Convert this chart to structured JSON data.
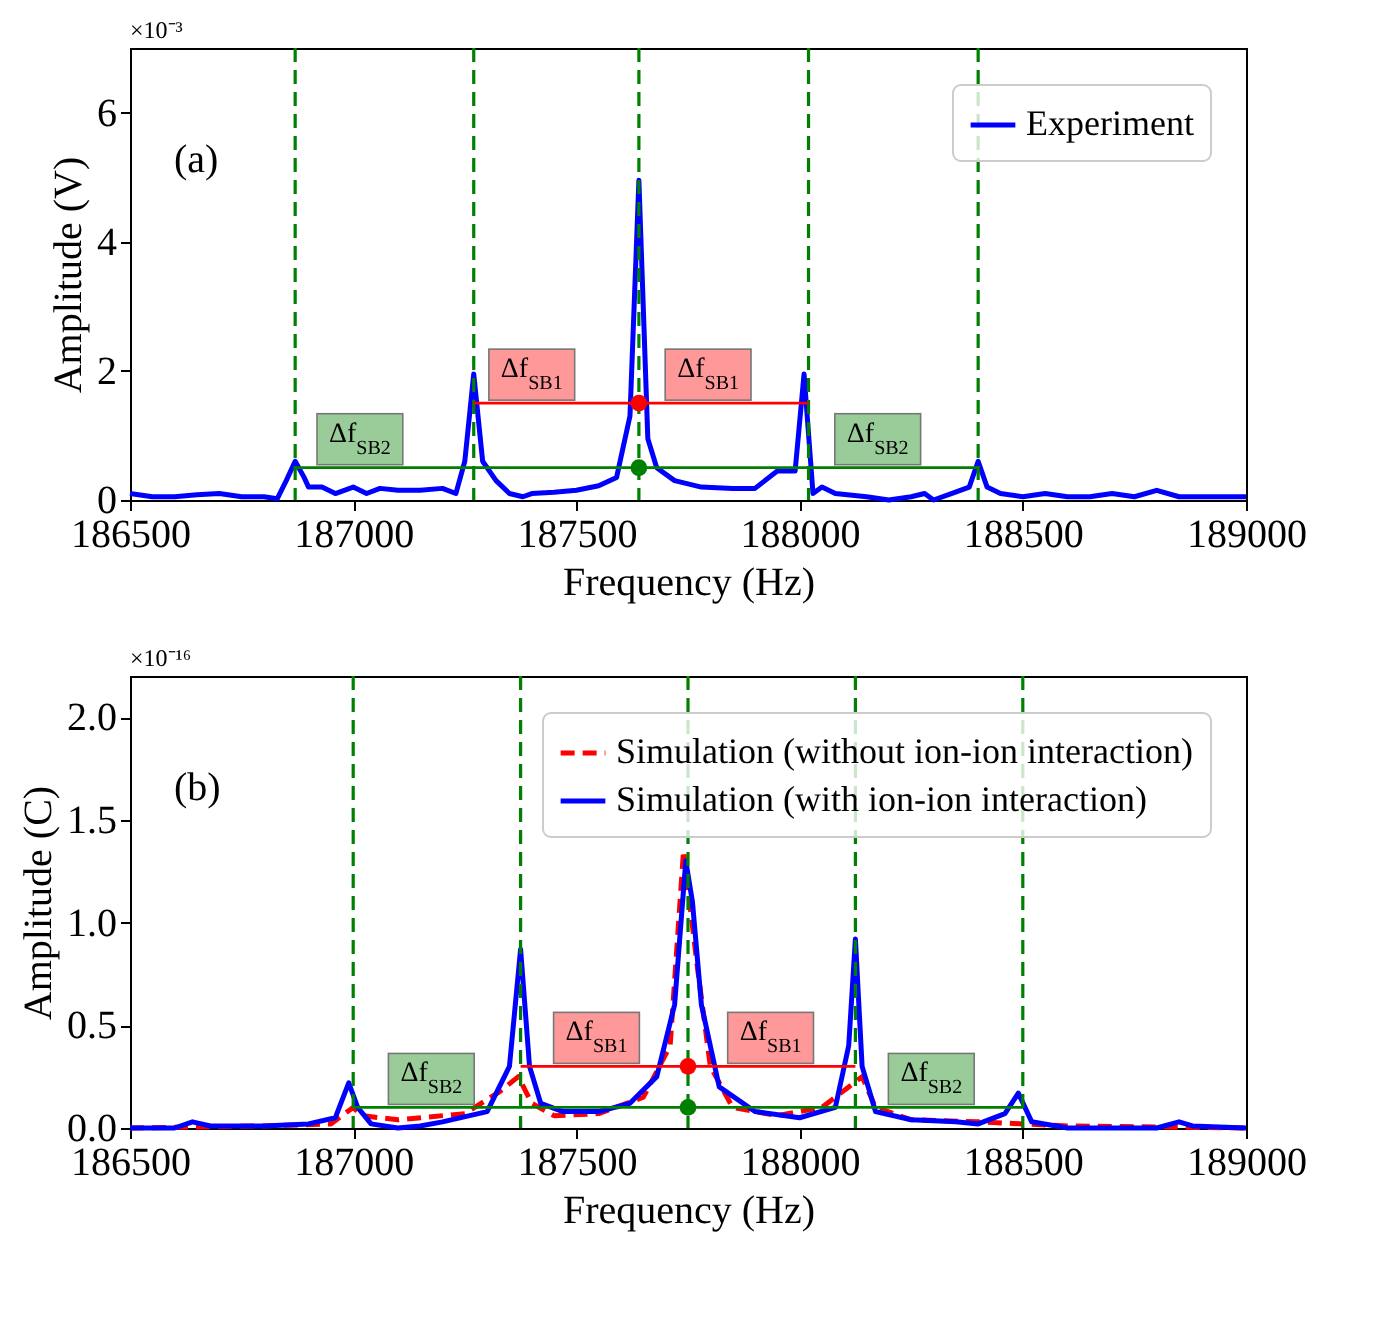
{
  "chart_data": [
    {
      "type": "line",
      "xlabel": "Frequency (Hz)",
      "ylabel": "Amplitude (V)",
      "xlim": [
        186500,
        189000
      ],
      "xticks": [
        186500,
        187000,
        187500,
        188000,
        188500,
        189000
      ],
      "ylim": [
        0,
        7
      ],
      "yticks": [
        0,
        2,
        4,
        6
      ],
      "grid": false,
      "legend": "top right",
      "marker": "none",
      "series": [
        {
          "name": "Experiment",
          "color": "#0000ff",
          "line_style": "solid",
          "x": [
            186500,
            186550,
            186600,
            186650,
            186700,
            186750,
            186800,
            186830,
            186850,
            186870,
            186890,
            186900,
            186930,
            186960,
            187000,
            187030,
            187060,
            187100,
            187150,
            187200,
            187230,
            187250,
            187270,
            187290,
            187320,
            187350,
            187380,
            187400,
            187450,
            187500,
            187550,
            187590,
            187620,
            187640,
            187660,
            187680,
            187720,
            187780,
            187850,
            187900,
            187950,
            187990,
            188010,
            188030,
            188050,
            188080,
            188150,
            188200,
            188250,
            188280,
            188300,
            188340,
            188380,
            188400,
            188420,
            188450,
            188500,
            188550,
            188600,
            188650,
            188700,
            188750,
            188800,
            188850,
            188900,
            189000
          ],
          "values": [
            0.1,
            0.05,
            0.05,
            0.08,
            0.1,
            0.05,
            0.05,
            0.02,
            0.3,
            0.6,
            0.35,
            0.2,
            0.2,
            0.1,
            0.2,
            0.1,
            0.18,
            0.15,
            0.15,
            0.18,
            0.1,
            0.6,
            1.95,
            0.6,
            0.3,
            0.1,
            0.05,
            0.1,
            0.12,
            0.15,
            0.22,
            0.35,
            1.3,
            4.95,
            0.95,
            0.5,
            0.3,
            0.2,
            0.18,
            0.18,
            0.45,
            0.45,
            1.95,
            0.1,
            0.2,
            0.1,
            0.05,
            0.0,
            0.05,
            0.1,
            0.0,
            0.1,
            0.2,
            0.6,
            0.2,
            0.1,
            0.05,
            0.1,
            0.05,
            0.05,
            0.1,
            0.05,
            0.15,
            0.05,
            0.05,
            0.05
          ]
        },
        {
          "color": "#ff0000",
          "line_style": "solid",
          "x": [
            187270,
            188020
          ],
          "values": [
            1.5,
            1.5
          ]
        },
        {
          "color": "#008000",
          "line_style": "solid",
          "x": [
            186870,
            188400
          ],
          "values": [
            0.5,
            0.5
          ]
        },
        {
          "type": "scatter",
          "marker": "circle",
          "color": "#ff0000",
          "x": [
            187640
          ],
          "values": [
            1.5
          ]
        },
        {
          "type": "scatter",
          "marker": "circle",
          "color": "#008000",
          "x": [
            187640
          ],
          "values": [
            0.5
          ]
        }
      ],
      "ref_lines": [
        {
          "axis": "x",
          "value": 186870,
          "color": "#008000",
          "line_style": "dashed"
        },
        {
          "axis": "x",
          "value": 187270,
          "color": "#008000",
          "line_style": "dashed"
        },
        {
          "axis": "x",
          "value": 187640,
          "color": "#008000",
          "line_style": "dashed"
        },
        {
          "axis": "x",
          "value": 188020,
          "color": "#008000",
          "line_style": "dashed"
        },
        {
          "axis": "x",
          "value": 188400,
          "color": "#008000",
          "line_style": "dashed"
        }
      ],
      "annotations": [
        "×10⁻³",
        "(a)",
        {
          "text": "Δf$_{SB1}$",
          "x": 187400,
          "y": 1.5
        },
        {
          "text": "Δf$_{SB1}$",
          "x": 187795,
          "y": 1.5
        },
        {
          "text": "Δf$_{SB2}$",
          "x": 187015,
          "y": 0.5
        },
        {
          "text": "Δf$_{SB2}$",
          "x": 188175,
          "y": 0.5
        }
      ]
    },
    {
      "type": "line",
      "xlabel": "Frequency (Hz)",
      "ylabel": "Amplitude (C)",
      "xlim": [
        186500,
        189000
      ],
      "xticks": [
        186500,
        187000,
        187500,
        188000,
        188500,
        189000
      ],
      "ylim": [
        0,
        2.2
      ],
      "yticks": [
        {
          "value": 0,
          "label": "0.0"
        },
        {
          "value": 0.5,
          "label": "0.5"
        },
        {
          "value": 1,
          "label": "1.0"
        },
        {
          "value": 1.5,
          "label": "1.5"
        },
        {
          "value": 2,
          "label": "2.0"
        }
      ],
      "grid": false,
      "legend": "top right",
      "marker": "none",
      "series": [
        {
          "name": "Simulation (without ion-ion interaction)",
          "color": "#ff0000",
          "line_style": "dashed",
          "x": [
            186500,
            186800,
            186950,
            187000,
            187020,
            187100,
            187250,
            187330,
            187370,
            187400,
            187450,
            187550,
            187650,
            187710,
            187740,
            187770,
            187800,
            187850,
            187950,
            188050,
            188110,
            188140,
            188170,
            188250,
            188400,
            188500,
            188600,
            189000
          ],
          "values": [
            0.0,
            0.01,
            0.02,
            0.1,
            0.06,
            0.04,
            0.07,
            0.18,
            0.25,
            0.12,
            0.06,
            0.07,
            0.15,
            0.4,
            1.35,
            0.8,
            0.3,
            0.1,
            0.06,
            0.1,
            0.2,
            0.25,
            0.1,
            0.04,
            0.03,
            0.02,
            0.01,
            0.0
          ]
        },
        {
          "name": "Simulation (with ion-ion interaction)",
          "color": "#0000ff",
          "line_style": "solid",
          "x": [
            186500,
            186600,
            186640,
            186680,
            186800,
            186900,
            186960,
            186990,
            187010,
            187040,
            187100,
            187150,
            187200,
            187300,
            187350,
            187375,
            187395,
            187420,
            187470,
            187550,
            187620,
            187680,
            187720,
            187745,
            187760,
            187780,
            187820,
            187900,
            188000,
            188080,
            188110,
            188125,
            188140,
            188170,
            188250,
            188350,
            188400,
            188460,
            188490,
            188520,
            188600,
            188800,
            188850,
            188880,
            189000
          ],
          "values": [
            0.0,
            0.0,
            0.03,
            0.01,
            0.01,
            0.02,
            0.05,
            0.22,
            0.1,
            0.02,
            0.0,
            0.01,
            0.03,
            0.08,
            0.3,
            0.87,
            0.3,
            0.12,
            0.08,
            0.08,
            0.12,
            0.25,
            0.6,
            1.3,
            1.1,
            0.6,
            0.2,
            0.08,
            0.05,
            0.1,
            0.4,
            0.92,
            0.3,
            0.08,
            0.04,
            0.03,
            0.02,
            0.07,
            0.17,
            0.03,
            0.0,
            0.0,
            0.03,
            0.01,
            0.0
          ]
        },
        {
          "color": "#ff0000",
          "line_style": "solid",
          "x": [
            187375,
            188125
          ],
          "values": [
            0.3,
            0.3
          ]
        },
        {
          "color": "#008000",
          "line_style": "solid",
          "x": [
            187000,
            188500
          ],
          "values": [
            0.1,
            0.1
          ]
        },
        {
          "type": "scatter",
          "marker": "circle",
          "color": "#ff0000",
          "x": [
            187750
          ],
          "values": [
            0.3
          ]
        },
        {
          "type": "scatter",
          "marker": "circle",
          "color": "#008000",
          "x": [
            187750
          ],
          "values": [
            0.1
          ]
        }
      ],
      "ref_lines": [
        {
          "axis": "x",
          "value": 187000,
          "color": "#008000",
          "line_style": "dashed"
        },
        {
          "axis": "x",
          "value": 187375,
          "color": "#008000",
          "line_style": "dashed"
        },
        {
          "axis": "x",
          "value": 187750,
          "color": "#008000",
          "line_style": "dashed"
        },
        {
          "axis": "x",
          "value": 188125,
          "color": "#008000",
          "line_style": "dashed"
        },
        {
          "axis": "x",
          "value": 188500,
          "color": "#008000",
          "line_style": "dashed"
        }
      ],
      "annotations": [
        "×10⁻¹⁶",
        "(b)",
        {
          "text": "Δf$_{SB1}$",
          "x": 187545,
          "y": 0.3
        },
        {
          "text": "Δf$_{SB1}$",
          "x": 187935,
          "y": 0.3
        },
        {
          "text": "Δf$_{SB2}$",
          "x": 187175,
          "y": 0.1
        },
        {
          "text": "Δf$_{SB2}$",
          "x": 188295,
          "y": 0.1
        }
      ]
    }
  ]
}
